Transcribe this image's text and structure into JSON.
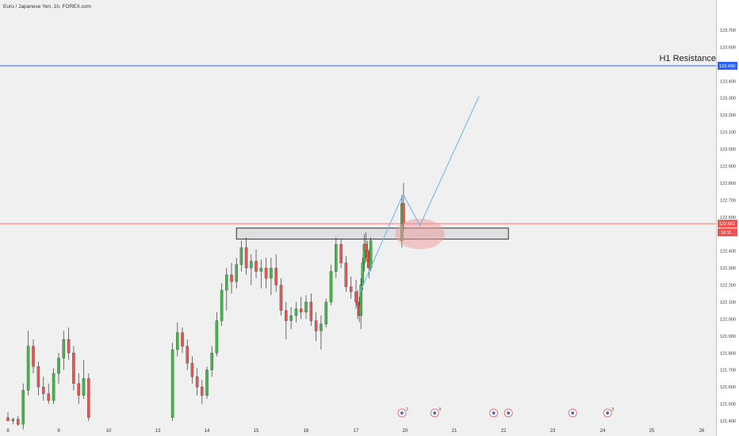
{
  "title": "Euro / Japanese Yen, 1h, FOREX.com",
  "annotation_text": "H1 Resistance",
  "current_price_label": "122.561",
  "countdown_label": "18:11",
  "resistance_price_label": "123.490",
  "colors": {
    "up": "#4caf50",
    "down": "#ef5350",
    "wick": "#333333",
    "resistance_line": "#2962ff",
    "current_line": "#ef5350",
    "zone_fill": "#d9d9de",
    "zone_border": "#333333",
    "ellipse": "#ef9a9a",
    "projection": "#64b5f6"
  },
  "events": [
    {
      "icon": "flag-icon",
      "label": "2",
      "date": "19.8"
    },
    {
      "icon": "flag-icon",
      "label": "9",
      "date": "20.6"
    },
    {
      "icon": "flag-icon",
      "label": "",
      "date": "21.8"
    },
    {
      "icon": "flag-icon",
      "label": "",
      "date": "22.1"
    },
    {
      "icon": "flag-icon",
      "label": "",
      "date": "23.4"
    },
    {
      "icon": "flag-icon",
      "label": "3",
      "date": "24.1"
    }
  ],
  "chart_data": {
    "type": "candlestick",
    "x_labels": [
      "8",
      "9",
      "10",
      "13",
      "14",
      "15",
      "16",
      "17",
      "20",
      "21",
      "22",
      "23",
      "24",
      "25",
      "26"
    ],
    "x_ticks": [
      8,
      9,
      10,
      13,
      14,
      15,
      16,
      17,
      20,
      21,
      22,
      23,
      24,
      25,
      26
    ],
    "y_ticks": [
      "121.400",
      "121.500",
      "121.600",
      "121.700",
      "121.800",
      "121.900",
      "122.000",
      "122.100",
      "122.200",
      "122.300",
      "122.400",
      "122.500",
      "122.600",
      "122.700",
      "122.800",
      "122.900",
      "123.000",
      "123.100",
      "123.200",
      "123.300",
      "123.400",
      "123.500",
      "123.600",
      "123.700"
    ],
    "ylim": [
      121.4,
      123.73
    ],
    "resistance": 123.49,
    "current_price": 122.561,
    "zone": {
      "from": "14.6",
      "to": "22.1",
      "low": 122.47,
      "high": 122.535
    },
    "ellipse": {
      "center_x": "20.3",
      "center_y": 122.5,
      "width_days": 1.0,
      "height_price": 0.09
    },
    "projection_path": [
      [
        "19.9",
        122.73
      ],
      [
        "20.3",
        122.55
      ],
      [
        "21.5",
        123.31
      ]
    ],
    "trendline": [
      [
        "17.2",
        122.15
      ],
      [
        "19.85",
        122.73
      ]
    ],
    "candles": [
      [
        8.0,
        121.42,
        121.45,
        121.4,
        121.4
      ],
      [
        8.1,
        121.4,
        121.42,
        121.38,
        121.41
      ],
      [
        8.2,
        121.41,
        121.43,
        121.37,
        121.38
      ],
      [
        8.3,
        121.38,
        121.62,
        121.35,
        121.58
      ],
      [
        8.4,
        121.58,
        121.93,
        121.55,
        121.84
      ],
      [
        8.5,
        121.84,
        121.88,
        121.68,
        121.72
      ],
      [
        8.6,
        121.72,
        121.75,
        121.55,
        121.6
      ],
      [
        8.7,
        121.6,
        121.66,
        121.52,
        121.56
      ],
      [
        8.8,
        121.56,
        121.62,
        121.5,
        121.52
      ],
      [
        8.9,
        121.52,
        121.71,
        121.5,
        121.68
      ],
      [
        9.0,
        121.68,
        121.8,
        121.62,
        121.77
      ],
      [
        9.1,
        121.77,
        121.93,
        121.7,
        121.88
      ],
      [
        9.2,
        121.88,
        121.95,
        121.76,
        121.8
      ],
      [
        9.3,
        121.8,
        121.84,
        121.58,
        121.62
      ],
      [
        9.4,
        121.62,
        121.68,
        121.5,
        121.55
      ],
      [
        9.5,
        121.55,
        121.76,
        121.53,
        121.65
      ],
      [
        9.6,
        121.65,
        121.68,
        121.4,
        121.42
      ],
      [
        13.3,
        121.42,
        121.86,
        121.4,
        121.82
      ],
      [
        13.4,
        121.82,
        121.98,
        121.78,
        121.92
      ],
      [
        13.5,
        121.92,
        121.95,
        121.8,
        121.84
      ],
      [
        13.6,
        121.84,
        121.88,
        121.7,
        121.74
      ],
      [
        13.7,
        121.74,
        121.78,
        121.62,
        121.66
      ],
      [
        13.8,
        121.66,
        121.71,
        121.55,
        121.6
      ],
      [
        13.9,
        121.6,
        121.64,
        121.5,
        121.55
      ],
      [
        14.0,
        121.55,
        121.72,
        121.53,
        121.7
      ],
      [
        14.1,
        121.7,
        121.84,
        121.66,
        121.8
      ],
      [
        14.2,
        121.8,
        122.04,
        121.78,
        121.99
      ],
      [
        14.3,
        121.99,
        122.21,
        121.96,
        122.17
      ],
      [
        14.4,
        122.17,
        122.3,
        122.05,
        122.26
      ],
      [
        14.5,
        122.26,
        122.33,
        122.15,
        122.22
      ],
      [
        14.6,
        122.22,
        122.36,
        122.18,
        122.32
      ],
      [
        14.7,
        122.32,
        122.46,
        122.28,
        122.42
      ],
      [
        14.8,
        122.42,
        122.48,
        122.26,
        122.3
      ],
      [
        14.9,
        122.3,
        122.38,
        122.2,
        122.34
      ],
      [
        15.0,
        122.34,
        122.41,
        122.24,
        122.28
      ],
      [
        15.1,
        122.28,
        122.35,
        122.18,
        122.3
      ],
      [
        15.2,
        122.3,
        122.36,
        122.18,
        122.24
      ],
      [
        15.3,
        122.24,
        122.36,
        122.14,
        122.3
      ],
      [
        15.4,
        122.3,
        122.38,
        122.16,
        122.2
      ],
      [
        15.5,
        122.2,
        122.24,
        122.02,
        122.05
      ],
      [
        15.6,
        122.05,
        122.1,
        121.88,
        121.99
      ],
      [
        15.7,
        121.99,
        122.07,
        121.94,
        122.02
      ],
      [
        15.8,
        122.02,
        122.1,
        121.98,
        122.06
      ],
      [
        15.9,
        122.06,
        122.13,
        122.0,
        122.04
      ],
      [
        16.0,
        122.04,
        122.14,
        122.0,
        122.1
      ],
      [
        16.1,
        122.1,
        122.15,
        121.96,
        121.99
      ],
      [
        16.2,
        121.99,
        122.04,
        121.87,
        121.93
      ],
      [
        16.3,
        121.93,
        122.02,
        121.82,
        121.97
      ],
      [
        16.4,
        121.97,
        122.12,
        121.95,
        122.1
      ],
      [
        16.5,
        122.1,
        122.32,
        122.08,
        122.28
      ],
      [
        16.6,
        122.28,
        122.48,
        122.24,
        122.44
      ],
      [
        16.7,
        122.44,
        122.47,
        122.3,
        122.33
      ],
      [
        16.8,
        122.33,
        122.37,
        122.16,
        122.19
      ],
      [
        16.9,
        122.19,
        122.25,
        122.12,
        122.16
      ],
      [
        17.0,
        122.16,
        122.23,
        122.06,
        122.1
      ],
      [
        17.1,
        122.1,
        122.17,
        122.0,
        122.08
      ],
      [
        17.2,
        122.08,
        122.13,
        121.98,
        122.02
      ],
      [
        17.3,
        122.02,
        122.24,
        121.94,
        122.2
      ],
      [
        17.4,
        122.2,
        122.36,
        122.17,
        122.33
      ],
      [
        17.5,
        122.33,
        122.5,
        122.28,
        122.44
      ],
      [
        17.6,
        122.44,
        122.51,
        122.36,
        122.4
      ],
      [
        17.7,
        122.4,
        122.46,
        122.3,
        122.34
      ],
      [
        17.8,
        122.34,
        122.41,
        122.24,
        122.3
      ],
      [
        17.9,
        122.3,
        122.48,
        122.28,
        122.46
      ],
      [
        19.8,
        122.46,
        122.73,
        122.42,
        122.68
      ],
      [
        19.9,
        122.68,
        122.8,
        122.52,
        122.56
      ]
    ]
  }
}
